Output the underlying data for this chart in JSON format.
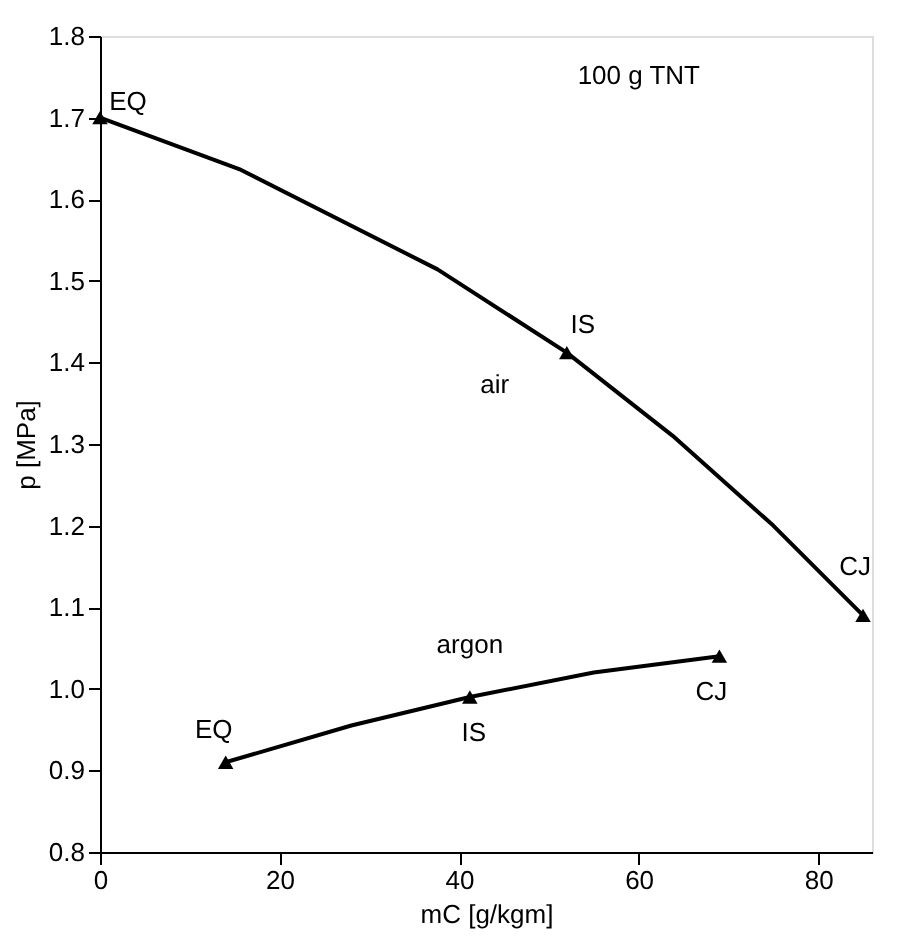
{
  "chart_data": {
    "type": "line",
    "xlabel": "mC [g/kgm]",
    "ylabel": "p [MPa]",
    "xlim": [
      0,
      86
    ],
    "xticks": [
      0,
      20,
      40,
      60,
      80
    ],
    "ylim": [
      0.8,
      1.8
    ],
    "yticks": [
      {
        "value": 0.8,
        "label": "0.8"
      },
      0.9,
      {
        "value": 1.0,
        "label": "1.0"
      },
      1.1,
      1.2,
      1.3,
      1.4,
      1.5,
      1.6,
      1.7,
      1.8
    ],
    "grid": false,
    "legend": false,
    "line_style": "solid",
    "series": [
      {
        "name": "air",
        "color": "#000000",
        "marker": "none",
        "x": [
          0,
          15.5,
          37.6,
          52,
          63.8,
          75,
          85
        ],
        "values": [
          1.7,
          1.637,
          1.514,
          1.412,
          1.31,
          1.2,
          1.09
        ]
      },
      {
        "name": "argon",
        "color": "#000000",
        "marker": "none",
        "x": [
          14,
          28,
          41.2,
          55,
          69
        ],
        "values": [
          0.91,
          0.955,
          0.99,
          1.02,
          1.04
        ]
      },
      {
        "color": "#000000",
        "type": "scatter",
        "marker": "triangle",
        "x": [
          0,
          52,
          85,
          14,
          41.2,
          69
        ],
        "values": [
          1.7,
          1.412,
          1.09,
          0.91,
          0.99,
          1.04
        ],
        "value_labels": [
          "EQ",
          "IS",
          "CJ",
          "EQ",
          "IS",
          "CJ"
        ]
      }
    ],
    "annotations": [
      "100 g TNT"
    ]
  }
}
